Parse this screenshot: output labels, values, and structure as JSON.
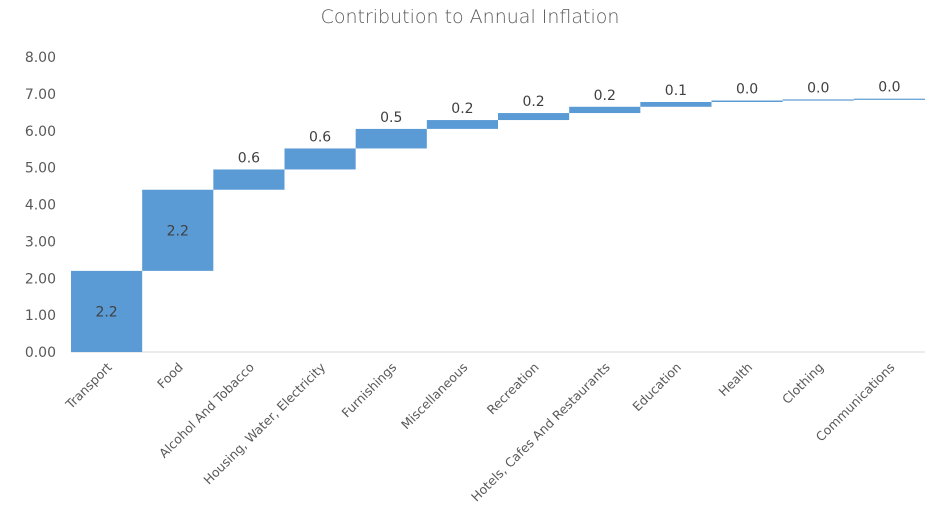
{
  "chart_data": {
    "type": "bar",
    "subtype": "waterfall",
    "title": "Contribution to Annual Inflation",
    "xlabel": "",
    "ylabel": "",
    "ylim": [
      0,
      8
    ],
    "y_ticks": [
      "0.00",
      "1.00",
      "2.00",
      "3.00",
      "4.00",
      "5.00",
      "6.00",
      "7.00",
      "8.00"
    ],
    "grid": false,
    "legend": "none",
    "categories": [
      "Transport",
      "Food",
      "Alcohol And Tobacco",
      "Housing, Water, Electricity",
      "Furnishings",
      "Miscellaneous",
      "Recreation",
      "Hotels, Cafes And Restaurants",
      "Education",
      "Health",
      "Clothing",
      "Communications"
    ],
    "values": [
      2.2,
      2.2,
      0.55,
      0.57,
      0.53,
      0.24,
      0.19,
      0.17,
      0.13,
      0.04,
      0.03,
      0.02
    ],
    "data_labels": [
      "2.2",
      "2.2",
      "0.6",
      "0.6",
      "0.5",
      "0.2",
      "0.2",
      "0.2",
      "0.1",
      "0.0",
      "0.0",
      "0.0"
    ],
    "bar_color": "#5b9bd5",
    "axis_color": "#d9d9d9"
  }
}
